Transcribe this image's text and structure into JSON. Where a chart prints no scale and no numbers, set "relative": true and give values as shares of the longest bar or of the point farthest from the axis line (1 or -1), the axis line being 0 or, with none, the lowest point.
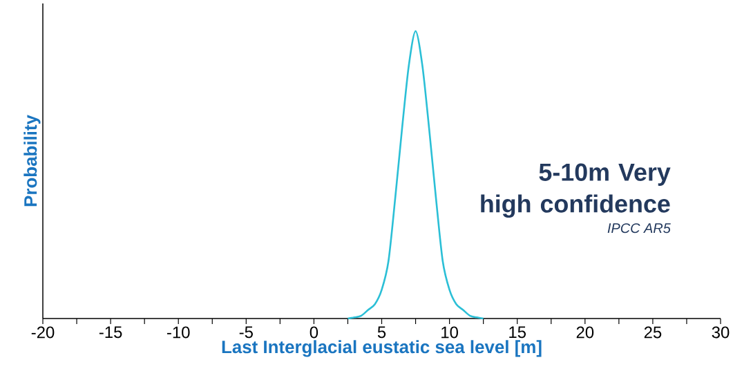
{
  "chart_data": {
    "type": "line",
    "relative": true,
    "xlabel": "Last Interglacial eustatic sea level [m]",
    "ylabel": "Probability",
    "annotations": [
      "5-10m Very high confidence",
      "IPCC AR5"
    ],
    "xlim": [
      -20,
      30
    ],
    "xticks": [
      -20,
      {
        "value": -17.5,
        "label": null
      },
      -15,
      {
        "value": -12.5,
        "label": null
      },
      -10,
      {
        "value": -7.5,
        "label": null
      },
      -5,
      {
        "value": -2.5,
        "label": null
      },
      0,
      {
        "value": 2.5,
        "label": null
      },
      5,
      {
        "value": 7.5,
        "label": null
      },
      10,
      {
        "value": 12.5,
        "label": null
      },
      15,
      {
        "value": 17.5,
        "label": null
      },
      20,
      {
        "value": 22.5,
        "label": null
      },
      25,
      {
        "value": 27.5,
        "label": null
      },
      30
    ],
    "grid": false,
    "marker": "none",
    "line_style": "solid",
    "series": [
      {
        "color": "#2bbfd6",
        "x": [
          2.5,
          3,
          3.5,
          4,
          4.5,
          5,
          5.5,
          6,
          6.5,
          7,
          7.5,
          8,
          8.5,
          9,
          9.5,
          10,
          10.5,
          11,
          11.5,
          12,
          12.5
        ],
        "values": [
          0,
          0.004,
          0.01,
          0.03,
          0.05,
          0.1,
          0.2,
          0.42,
          0.66,
          0.88,
          1,
          0.88,
          0.66,
          0.42,
          0.2,
          0.1,
          0.05,
          0.03,
          0.01,
          0.004,
          0
        ]
      }
    ]
  }
}
